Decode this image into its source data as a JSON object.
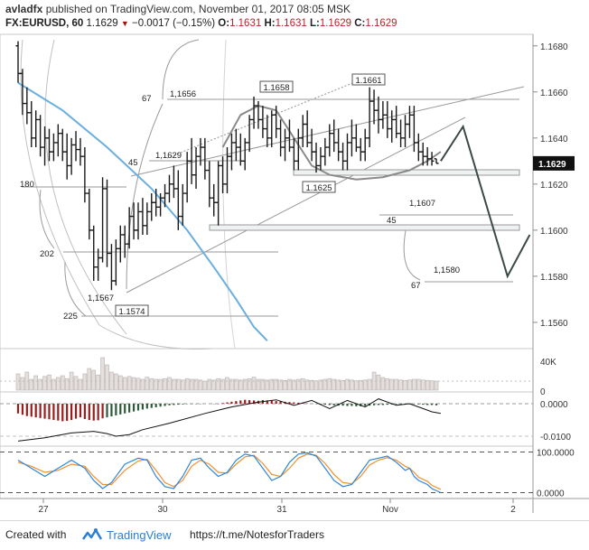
{
  "header": {
    "author": "avladfx",
    "published": "published on TradingView.com, November 01, 2017 08:05 MSK",
    "symbol": "FX:EURUSD, 60",
    "last": "1.1629",
    "change": "−0.0017 (−0.15%)",
    "o_label": "O:",
    "o_value": "1.1631",
    "h_label": "H:",
    "h_value": "1.1631",
    "l_label": "L:",
    "l_value": "1.1629",
    "c_label": "C:",
    "c_value": "1.1629"
  },
  "footer": {
    "created_with": "Created with",
    "brand": "TradingView",
    "link": "https://t.me/NotesforTraders"
  },
  "colors": {
    "ohlc": "#1a1a1a",
    "ma_blue": "#6aaee0",
    "ma_gray": "#8a8a8a",
    "hist_red": "#9a1d1d",
    "hist_green": "#2d5a3a",
    "stoch_k": "#2e86de",
    "stoch_d": "#f0902c",
    "fib_line": "#9a9a9a",
    "projection": "#3b4a46"
  },
  "chart_data": {
    "type": "ohlc",
    "symbol": "FX:EURUSD",
    "timeframe": "60",
    "x_tick_labels": [
      "27",
      "30",
      "31",
      "Nov",
      "2"
    ],
    "y_ticks": [
      "1.1680",
      "1.1660",
      "1.1640",
      "1.1620",
      "1.1600",
      "1.1580",
      "1.1560"
    ],
    "ylim": [
      1.1549,
      1.1685
    ],
    "last_price_label": "1.1629",
    "candles": [
      [
        1.168,
        1.1682,
        1.1664,
        1.1668
      ],
      [
        1.1668,
        1.167,
        1.165,
        1.1655
      ],
      [
        1.1655,
        1.1662,
        1.1646,
        1.1651
      ],
      [
        1.1651,
        1.1656,
        1.1636,
        1.164
      ],
      [
        1.164,
        1.1652,
        1.1636,
        1.1648
      ],
      [
        1.1648,
        1.165,
        1.1632,
        1.1636
      ],
      [
        1.1636,
        1.1645,
        1.1628,
        1.164
      ],
      [
        1.164,
        1.1644,
        1.163,
        1.1634
      ],
      [
        1.1634,
        1.1642,
        1.163,
        1.1638
      ],
      [
        1.1638,
        1.1646,
        1.1632,
        1.1642
      ],
      [
        1.1642,
        1.1644,
        1.163,
        1.1634
      ],
      [
        1.1634,
        1.1642,
        1.1622,
        1.1628
      ],
      [
        1.1628,
        1.164,
        1.1624,
        1.1637
      ],
      [
        1.1637,
        1.1643,
        1.163,
        1.1635
      ],
      [
        1.1635,
        1.164,
        1.1628,
        1.1632
      ],
      [
        1.1632,
        1.1636,
        1.1612,
        1.1616
      ],
      [
        1.1616,
        1.1618,
        1.1596,
        1.16
      ],
      [
        1.16,
        1.1602,
        1.1578,
        1.1584
      ],
      [
        1.1584,
        1.1592,
        1.1578,
        1.1588
      ],
      [
        1.1588,
        1.1623,
        1.1586,
        1.1618
      ],
      [
        1.1618,
        1.1622,
        1.1584,
        1.159
      ],
      [
        1.159,
        1.1594,
        1.1574,
        1.1578
      ],
      [
        1.1578,
        1.1596,
        1.1576,
        1.1592
      ],
      [
        1.1592,
        1.1602,
        1.1586,
        1.1598
      ],
      [
        1.1598,
        1.1602,
        1.1588,
        1.1594
      ],
      [
        1.1594,
        1.161,
        1.1592,
        1.1606
      ],
      [
        1.1606,
        1.1612,
        1.1596,
        1.16
      ],
      [
        1.16,
        1.1612,
        1.1596,
        1.1608
      ],
      [
        1.1608,
        1.1614,
        1.1598,
        1.1602
      ],
      [
        1.1602,
        1.1612,
        1.1598,
        1.1608
      ],
      [
        1.1608,
        1.1616,
        1.1604,
        1.1612
      ],
      [
        1.1612,
        1.1618,
        1.1606,
        1.161
      ],
      [
        1.161,
        1.1616,
        1.1606,
        1.1614
      ],
      [
        1.1614,
        1.162,
        1.161,
        1.1616
      ],
      [
        1.1616,
        1.1624,
        1.1612,
        1.162
      ],
      [
        1.162,
        1.1628,
        1.1614,
        1.1618
      ],
      [
        1.1618,
        1.1626,
        1.16,
        1.1606
      ],
      [
        1.1606,
        1.162,
        1.1602,
        1.1616
      ],
      [
        1.1616,
        1.1634,
        1.1612,
        1.163
      ],
      [
        1.163,
        1.164,
        1.162,
        1.1624
      ],
      [
        1.1624,
        1.1636,
        1.1618,
        1.1632
      ],
      [
        1.1632,
        1.164,
        1.1628,
        1.1636
      ],
      [
        1.1636,
        1.164,
        1.1622,
        1.1626
      ],
      [
        1.1626,
        1.163,
        1.161,
        1.1614
      ],
      [
        1.1614,
        1.162,
        1.1606,
        1.1612
      ],
      [
        1.1612,
        1.163,
        1.1602,
        1.1628
      ],
      [
        1.1628,
        1.1632,
        1.1616,
        1.162
      ],
      [
        1.162,
        1.1636,
        1.1616,
        1.1632
      ],
      [
        1.1632,
        1.1642,
        1.1626,
        1.1638
      ],
      [
        1.1638,
        1.1644,
        1.163,
        1.1636
      ],
      [
        1.1636,
        1.1642,
        1.1628,
        1.163
      ],
      [
        1.163,
        1.164,
        1.1626,
        1.1638
      ],
      [
        1.1638,
        1.165,
        1.1634,
        1.1648
      ],
      [
        1.1648,
        1.1658,
        1.1644,
        1.1654
      ],
      [
        1.1654,
        1.1656,
        1.1644,
        1.1648
      ],
      [
        1.1648,
        1.1654,
        1.164,
        1.1644
      ],
      [
        1.1644,
        1.165,
        1.1636,
        1.164
      ],
      [
        1.164,
        1.1652,
        1.1636,
        1.165
      ],
      [
        1.165,
        1.1654,
        1.164,
        1.1644
      ],
      [
        1.1644,
        1.1648,
        1.1632,
        1.1636
      ],
      [
        1.1636,
        1.1644,
        1.163,
        1.164
      ],
      [
        1.164,
        1.1648,
        1.1634,
        1.1636
      ],
      [
        1.1636,
        1.164,
        1.1626,
        1.163
      ],
      [
        1.163,
        1.1644,
        1.1626,
        1.164
      ],
      [
        1.164,
        1.165,
        1.1636,
        1.1646
      ],
      [
        1.1646,
        1.1652,
        1.1636,
        1.1638
      ],
      [
        1.1638,
        1.1644,
        1.163,
        1.1634
      ],
      [
        1.1634,
        1.1638,
        1.1625,
        1.1628
      ],
      [
        1.1628,
        1.1636,
        1.1626,
        1.1632
      ],
      [
        1.1632,
        1.164,
        1.1628,
        1.1636
      ],
      [
        1.1636,
        1.1646,
        1.1632,
        1.1642
      ],
      [
        1.1642,
        1.1648,
        1.1634,
        1.1638
      ],
      [
        1.1638,
        1.1644,
        1.163,
        1.1634
      ],
      [
        1.1634,
        1.1638,
        1.1626,
        1.163
      ],
      [
        1.163,
        1.1642,
        1.1626,
        1.1638
      ],
      [
        1.1638,
        1.1648,
        1.1632,
        1.164
      ],
      [
        1.164,
        1.1646,
        1.1634,
        1.1636
      ],
      [
        1.1636,
        1.164,
        1.163,
        1.1634
      ],
      [
        1.1634,
        1.1644,
        1.163,
        1.164
      ],
      [
        1.164,
        1.1662,
        1.1636,
        1.1656
      ],
      [
        1.1656,
        1.1661,
        1.1646,
        1.1652
      ],
      [
        1.1652,
        1.1658,
        1.1642,
        1.1648
      ],
      [
        1.1648,
        1.1656,
        1.1644,
        1.165
      ],
      [
        1.165,
        1.1656,
        1.164,
        1.1644
      ],
      [
        1.1644,
        1.1652,
        1.1638,
        1.1648
      ],
      [
        1.1648,
        1.1654,
        1.164,
        1.1642
      ],
      [
        1.1642,
        1.1648,
        1.1636,
        1.164
      ],
      [
        1.164,
        1.165,
        1.1636,
        1.1646
      ],
      [
        1.1646,
        1.1654,
        1.164,
        1.165
      ],
      [
        1.165,
        1.1654,
        1.1634,
        1.1638
      ],
      [
        1.1638,
        1.1642,
        1.163,
        1.1634
      ],
      [
        1.1634,
        1.1638,
        1.1628,
        1.1632
      ],
      [
        1.1632,
        1.1636,
        1.1628,
        1.1631
      ],
      [
        1.1631,
        1.1634,
        1.1628,
        1.163
      ],
      [
        1.1631,
        1.1631,
        1.1629,
        1.1629
      ]
    ],
    "ma_blue": [
      [
        1.1664,
        0
      ],
      [
        1.1652,
        10
      ],
      [
        1.1636,
        20
      ],
      [
        1.1618,
        30
      ],
      [
        1.16,
        38
      ],
      [
        1.1584,
        44
      ],
      [
        1.157,
        49
      ],
      [
        1.1558,
        53
      ],
      [
        1.1552,
        56
      ]
    ],
    "ma_gray": [
      [
        1.1636,
        46
      ],
      [
        1.165,
        50
      ],
      [
        1.1654,
        54
      ],
      [
        1.1652,
        58
      ],
      [
        1.164,
        62
      ],
      [
        1.1628,
        66
      ],
      [
        1.1624,
        70
      ],
      [
        1.1622,
        76
      ],
      [
        1.1623,
        82
      ],
      [
        1.1626,
        88
      ],
      [
        1.163,
        92
      ],
      [
        1.1634,
        95
      ]
    ],
    "annotations": {
      "price_boxes": [
        "1.1658",
        "1.1661",
        "1.1625",
        "1.1574"
      ],
      "levels": [
        "1,1656",
        "1,1629",
        "1,1607",
        "1,1580",
        "1,1567"
      ],
      "fib_numbers": [
        "67",
        "45",
        "180",
        "202",
        "225",
        "45",
        "67"
      ]
    },
    "projection": [
      [
        1.163,
        95
      ],
      [
        1.1645,
        100
      ],
      [
        1.158,
        110
      ],
      [
        1.1598,
        115
      ]
    ],
    "volume": {
      "axis_labels": [
        "40K",
        "0"
      ],
      "values": [
        0.45,
        0.35,
        0.5,
        0.3,
        0.4,
        0.3,
        0.38,
        0.42,
        0.3,
        0.35,
        0.4,
        0.32,
        0.5,
        0.38,
        0.3,
        0.45,
        0.6,
        0.55,
        0.42,
        0.9,
        0.7,
        0.5,
        0.45,
        0.4,
        0.35,
        0.38,
        0.35,
        0.33,
        0.3,
        0.36,
        0.32,
        0.3,
        0.3,
        0.32,
        0.35,
        0.3,
        0.3,
        0.28,
        0.32,
        0.3,
        0.3,
        0.28,
        0.25,
        0.3,
        0.28,
        0.32,
        0.3,
        0.35,
        0.3,
        0.3,
        0.28,
        0.3,
        0.32,
        0.36,
        0.3,
        0.3,
        0.28,
        0.3,
        0.3,
        0.28,
        0.27,
        0.3,
        0.28,
        0.3,
        0.32,
        0.28,
        0.27,
        0.26,
        0.28,
        0.3,
        0.32,
        0.3,
        0.28,
        0.27,
        0.3,
        0.28,
        0.26,
        0.27,
        0.28,
        0.3,
        0.5,
        0.42,
        0.35,
        0.32,
        0.3,
        0.3,
        0.28,
        0.27,
        0.28,
        0.3,
        0.3,
        0.28,
        0.27,
        0.26,
        0.25
      ]
    },
    "macd": {
      "axis_labels": [
        "0.0000",
        "-0.0100"
      ],
      "ylim": [
        -0.0125,
        0.0025
      ],
      "line": [
        [
          -0.0115,
          0
        ],
        [
          -0.0105,
          6
        ],
        [
          -0.009,
          12
        ],
        [
          -0.0085,
          17
        ],
        [
          -0.0092,
          20
        ],
        [
          -0.01,
          22
        ],
        [
          -0.0095,
          25
        ],
        [
          -0.008,
          28
        ],
        [
          -0.006,
          34
        ],
        [
          -0.003,
          42
        ],
        [
          -0.001,
          48
        ],
        [
          0.0005,
          54
        ],
        [
          0.0012,
          58
        ],
        [
          -0.0005,
          62
        ],
        [
          0.001,
          66
        ],
        [
          -0.0015,
          70
        ],
        [
          0.001,
          74
        ],
        [
          -0.001,
          78
        ],
        [
          0.0015,
          81
        ],
        [
          -0.0005,
          85
        ],
        [
          0.0,
          88
        ],
        [
          -0.0015,
          91
        ],
        [
          -0.0025,
          93
        ],
        [
          -0.003,
          95
        ]
      ],
      "hist": [
        -0.003,
        -0.0034,
        -0.0038,
        -0.004,
        -0.0042,
        -0.0044,
        -0.0046,
        -0.0048,
        -0.005,
        -0.0052,
        -0.0054,
        -0.0053,
        -0.005,
        -0.0046,
        -0.0042,
        -0.0047,
        -0.005,
        -0.0052,
        -0.0051,
        -0.0045,
        -0.0042,
        -0.0039,
        -0.0036,
        -0.0033,
        -0.003,
        -0.0027,
        -0.0024,
        -0.0021,
        -0.0018,
        -0.0015,
        -0.0013,
        -0.0011,
        -0.0009,
        -0.0007,
        -0.0005,
        -0.0004,
        -0.0003,
        -0.0002,
        -0.0001,
        -0.0001,
        -0.0001,
        -0.0001,
        0.0,
        0.0,
        -0.0001,
        -0.0001,
        0.0002,
        0.0004,
        0.0006,
        0.0008,
        0.001,
        0.0012,
        0.0011,
        0.001,
        0.0009,
        0.0011,
        0.001,
        0.0009,
        0.0008,
        0.0007,
        0.0006,
        0.0005,
        0.0004,
        0.0003,
        0.0002,
        0.0001,
        0.0,
        -0.0001,
        -0.0002,
        -0.0003,
        -0.0004,
        -0.0005,
        -0.0006,
        -0.0006,
        -0.0007,
        -0.0007,
        -0.0008,
        -0.0008,
        -0.0007,
        -0.0006,
        -0.0005,
        -0.0004,
        -0.0004,
        -0.0003,
        -0.0003,
        -0.0002,
        -0.0002,
        -0.0002,
        -0.0002,
        -0.0001,
        -0.0002,
        -0.0003,
        -0.0004,
        -0.0004,
        -0.0005
      ]
    },
    "stochastic": {
      "axis_labels": [
        "100.0000",
        "0.0000"
      ],
      "ylim": [
        -10,
        110
      ],
      "k": [
        [
          80,
          0
        ],
        [
          60,
          3
        ],
        [
          40,
          6
        ],
        [
          60,
          9
        ],
        [
          80,
          12
        ],
        [
          60,
          15
        ],
        [
          30,
          17
        ],
        [
          10,
          19
        ],
        [
          25,
          21
        ],
        [
          70,
          24
        ],
        [
          85,
          27
        ],
        [
          80,
          29
        ],
        [
          40,
          31
        ],
        [
          15,
          33
        ],
        [
          10,
          35
        ],
        [
          40,
          37
        ],
        [
          80,
          39
        ],
        [
          85,
          41
        ],
        [
          60,
          43
        ],
        [
          40,
          45
        ],
        [
          50,
          47
        ],
        [
          80,
          49
        ],
        [
          95,
          51
        ],
        [
          90,
          53
        ],
        [
          60,
          55
        ],
        [
          30,
          57
        ],
        [
          40,
          59
        ],
        [
          75,
          61
        ],
        [
          95,
          63
        ],
        [
          98,
          65
        ],
        [
          90,
          67
        ],
        [
          60,
          69
        ],
        [
          30,
          71
        ],
        [
          15,
          73
        ],
        [
          20,
          75
        ],
        [
          50,
          77
        ],
        [
          80,
          79
        ],
        [
          85,
          81
        ],
        [
          90,
          83
        ],
        [
          75,
          85
        ],
        [
          55,
          87
        ],
        [
          60,
          88
        ],
        [
          40,
          89
        ],
        [
          30,
          90
        ],
        [
          20,
          92
        ],
        [
          10,
          93
        ],
        [
          0,
          95
        ]
      ],
      "d": [
        [
          75,
          0
        ],
        [
          65,
          3
        ],
        [
          50,
          6
        ],
        [
          55,
          9
        ],
        [
          70,
          12
        ],
        [
          65,
          15
        ],
        [
          40,
          17
        ],
        [
          20,
          19
        ],
        [
          20,
          21
        ],
        [
          55,
          24
        ],
        [
          78,
          27
        ],
        [
          82,
          29
        ],
        [
          55,
          31
        ],
        [
          25,
          33
        ],
        [
          15,
          35
        ],
        [
          30,
          37
        ],
        [
          65,
          39
        ],
        [
          80,
          41
        ],
        [
          70,
          43
        ],
        [
          50,
          45
        ],
        [
          48,
          47
        ],
        [
          70,
          49
        ],
        [
          88,
          51
        ],
        [
          92,
          53
        ],
        [
          72,
          55
        ],
        [
          45,
          57
        ],
        [
          40,
          59
        ],
        [
          60,
          61
        ],
        [
          85,
          63
        ],
        [
          95,
          65
        ],
        [
          92,
          67
        ],
        [
          72,
          69
        ],
        [
          45,
          71
        ],
        [
          25,
          73
        ],
        [
          22,
          75
        ],
        [
          40,
          77
        ],
        [
          68,
          79
        ],
        [
          80,
          81
        ],
        [
          86,
          83
        ],
        [
          80,
          85
        ],
        [
          65,
          87
        ],
        [
          60,
          88
        ],
        [
          50,
          89
        ],
        [
          38,
          90
        ],
        [
          28,
          92
        ],
        [
          18,
          93
        ],
        [
          8,
          95
        ]
      ]
    }
  }
}
